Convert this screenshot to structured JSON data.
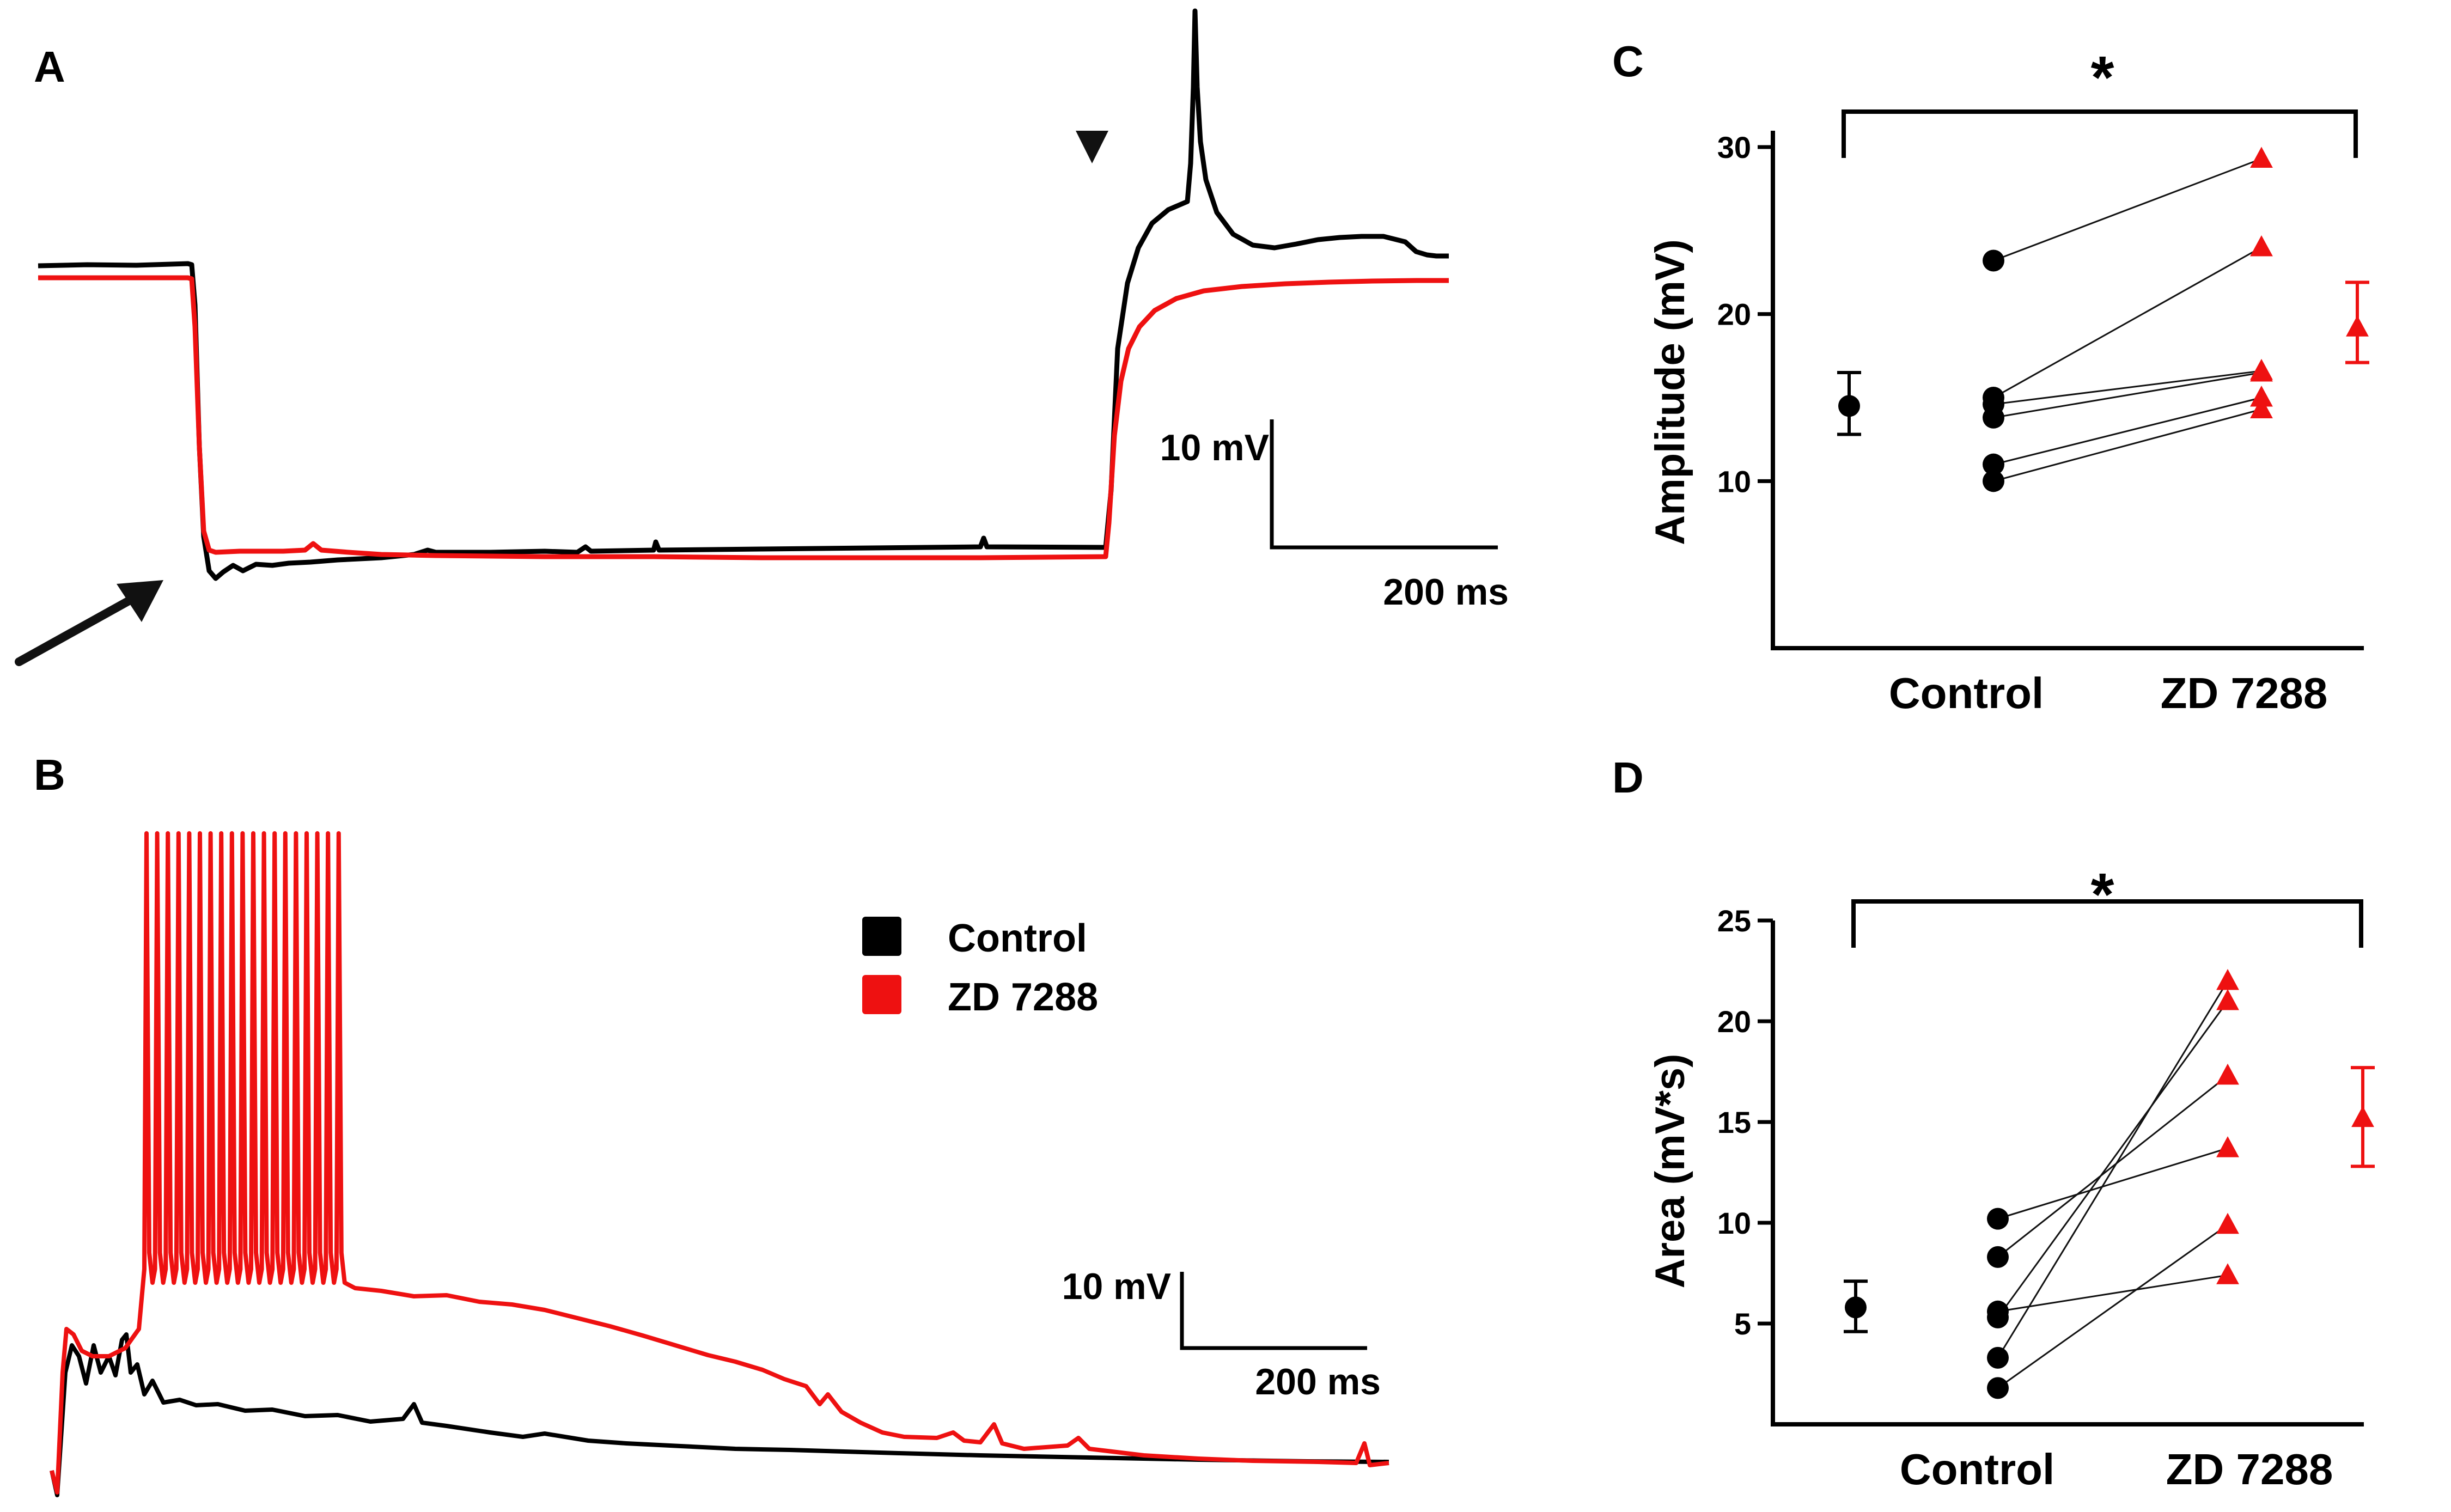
{
  "colors": {
    "control": "#000000",
    "zd7288": "#ee1111"
  },
  "panel_a": {
    "letter": "A",
    "scale_bar_v_label": "10 mV",
    "scale_bar_h_label": "200 ms",
    "arrow_icon": "arrow-icon",
    "arrowhead_icon": "down-triangle-icon"
  },
  "panel_b": {
    "letter": "B",
    "scale_bar_v_label": "10 mV",
    "scale_bar_h_label": "200 ms",
    "legend": [
      {
        "label": "Control",
        "color": "#000000"
      },
      {
        "label": "ZD 7288",
        "color": "#ee1111"
      }
    ]
  },
  "chart_data": [
    {
      "panel": "C",
      "type": "scatter",
      "title": "",
      "ylabel": "Amplitude (mV)",
      "xlabel": "",
      "categories": [
        "Control",
        "ZD 7288"
      ],
      "ylim": [
        0,
        30
      ],
      "yticks": [
        10,
        20,
        30
      ],
      "significance": "*",
      "pairs": [
        [
          23.2,
          29.3
        ],
        [
          15.0,
          24.0
        ],
        [
          14.6,
          16.6
        ],
        [
          13.8,
          16.5
        ],
        [
          11.0,
          15.0
        ],
        [
          10.0,
          14.3
        ]
      ],
      "summary": [
        {
          "name": "Control",
          "mean": 14.5,
          "err_low": 12.8,
          "err_high": 16.5,
          "color": "#000000",
          "marker": "circle"
        },
        {
          "name": "ZD 7288",
          "mean": 19.2,
          "err_low": 17.1,
          "err_high": 21.9,
          "color": "#ee1111",
          "marker": "triangle"
        }
      ]
    },
    {
      "panel": "D",
      "type": "scatter",
      "title": "",
      "ylabel": "Area (mV*s)",
      "xlabel": "",
      "categories": [
        "Control",
        "ZD 7288"
      ],
      "ylim": [
        0,
        25
      ],
      "yticks": [
        5,
        10,
        15,
        20,
        25
      ],
      "significance": "*",
      "pairs": [
        [
          10.2,
          13.7
        ],
        [
          8.3,
          17.3
        ],
        [
          5.6,
          7.4
        ],
        [
          5.3,
          21.0
        ],
        [
          3.3,
          22.0
        ],
        [
          1.8,
          9.9
        ]
      ],
      "summary": [
        {
          "name": "Control",
          "mean": 5.8,
          "err_low": 4.6,
          "err_high": 7.1,
          "color": "#000000",
          "marker": "circle"
        },
        {
          "name": "ZD 7288",
          "mean": 15.2,
          "err_low": 12.8,
          "err_high": 17.7,
          "color": "#ee1111",
          "marker": "triangle"
        }
      ]
    }
  ]
}
